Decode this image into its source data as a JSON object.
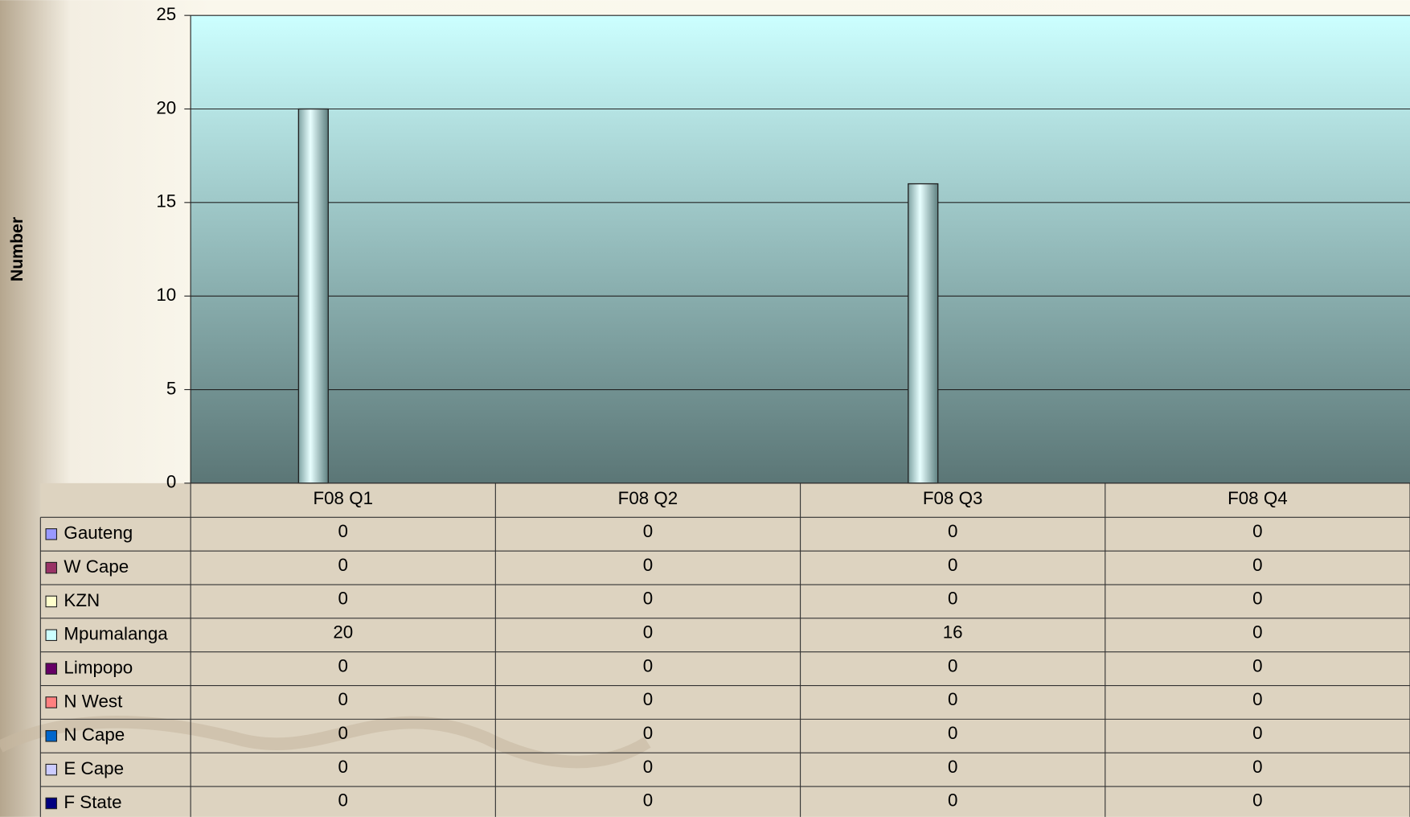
{
  "chart_data": {
    "type": "bar",
    "y_label": "Number",
    "categories": [
      "F08 Q1",
      "F08 Q2",
      "F08 Q3",
      "F08 Q4"
    ],
    "series": [
      {
        "name": "Gauteng",
        "color": "#9999ff",
        "values": [
          0,
          0,
          0,
          0
        ]
      },
      {
        "name": "W Cape",
        "color": "#993366",
        "values": [
          0,
          0,
          0,
          0
        ]
      },
      {
        "name": "KZN",
        "color": "#ffffcc",
        "values": [
          0,
          0,
          0,
          0
        ]
      },
      {
        "name": "Mpumalanga",
        "color": "#ccffff",
        "values": [
          20,
          0,
          16,
          0
        ]
      },
      {
        "name": "Limpopo",
        "color": "#660066",
        "values": [
          0,
          0,
          0,
          0
        ]
      },
      {
        "name": "N West",
        "color": "#ff8080",
        "values": [
          0,
          0,
          0,
          0
        ]
      },
      {
        "name": "N Cape",
        "color": "#0066cc",
        "values": [
          0,
          0,
          0,
          0
        ]
      },
      {
        "name": "E Cape",
        "color": "#ccccff",
        "values": [
          0,
          0,
          0,
          0
        ]
      },
      {
        "name": "F State",
        "color": "#000080",
        "values": [
          0,
          0,
          0,
          0
        ]
      }
    ],
    "ylim": [
      0,
      25
    ],
    "yticks": [
      0,
      5,
      10,
      15,
      20,
      25
    ],
    "grid": true,
    "data_table": true
  }
}
